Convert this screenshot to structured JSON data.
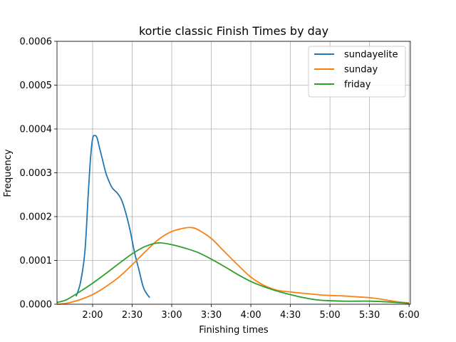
{
  "chart_data": {
    "type": "line",
    "title": "kortie classic Finish Times by day",
    "xlabel": "Finishing times",
    "ylabel": "Frequency",
    "xlim": [
      5580,
      21660
    ],
    "ylim": [
      0,
      0.0006
    ],
    "grid": true,
    "legend_position": "top-right",
    "x_units": "seconds",
    "x_ticks": [
      {
        "value": 7200,
        "label": "2:00"
      },
      {
        "value": 9000,
        "label": "2:30"
      },
      {
        "value": 10800,
        "label": "3:00"
      },
      {
        "value": 12600,
        "label": "3:30"
      },
      {
        "value": 14400,
        "label": "4:00"
      },
      {
        "value": 16200,
        "label": "4:30"
      },
      {
        "value": 18000,
        "label": "5:00"
      },
      {
        "value": 19800,
        "label": "5:30"
      },
      {
        "value": 21600,
        "label": "6:00"
      }
    ],
    "y_ticks": [
      {
        "value": 0,
        "label": "0.0000"
      },
      {
        "value": 0.0001,
        "label": "0.0001"
      },
      {
        "value": 0.0002,
        "label": "0.0002"
      },
      {
        "value": 0.0003,
        "label": "0.0003"
      },
      {
        "value": 0.0004,
        "label": "0.0004"
      },
      {
        "value": 0.0005,
        "label": "0.0005"
      },
      {
        "value": 0.0006,
        "label": "0.0006"
      }
    ],
    "series": [
      {
        "name": "sundayelite",
        "color": "#1f77b4",
        "points": [
          [
            6450,
            1.8e-05
          ],
          [
            6650,
            5e-05
          ],
          [
            6850,
            0.00012
          ],
          [
            7000,
            0.00025
          ],
          [
            7100,
            0.00033
          ],
          [
            7200,
            0.000378
          ],
          [
            7300,
            0.000385
          ],
          [
            7400,
            0.00038
          ],
          [
            7500,
            0.00036
          ],
          [
            7650,
            0.00033
          ],
          [
            7800,
            0.0003
          ],
          [
            7950,
            0.00028
          ],
          [
            8100,
            0.000265
          ],
          [
            8300,
            0.000255
          ],
          [
            8500,
            0.00024
          ],
          [
            8700,
            0.00021
          ],
          [
            8900,
            0.00017
          ],
          [
            9100,
            0.00012
          ],
          [
            9300,
            8e-05
          ],
          [
            9500,
            4e-05
          ],
          [
            9650,
            2.5e-05
          ],
          [
            9800,
            1.5e-05
          ]
        ]
      },
      {
        "name": "sunday",
        "color": "#ff7f0e",
        "points": [
          [
            5580,
            0.0
          ],
          [
            6000,
            2e-06
          ],
          [
            6600,
            1e-05
          ],
          [
            7200,
            2.2e-05
          ],
          [
            7800,
            4e-05
          ],
          [
            8400,
            6.2e-05
          ],
          [
            9000,
            9e-05
          ],
          [
            9600,
            0.00012
          ],
          [
            10200,
            0.000148
          ],
          [
            10800,
            0.000166
          ],
          [
            11400,
            0.000174
          ],
          [
            11700,
            0.000175
          ],
          [
            12000,
            0.00017
          ],
          [
            12600,
            0.00015
          ],
          [
            13200,
            0.00012
          ],
          [
            13800,
            9e-05
          ],
          [
            14400,
            6.2e-05
          ],
          [
            15000,
            4.3e-05
          ],
          [
            15600,
            3.2e-05
          ],
          [
            16200,
            2.8e-05
          ],
          [
            16800,
            2.5e-05
          ],
          [
            17400,
            2.2e-05
          ],
          [
            18000,
            2e-05
          ],
          [
            18600,
            1.9e-05
          ],
          [
            19200,
            1.7e-05
          ],
          [
            19800,
            1.5e-05
          ],
          [
            20400,
            1.1e-05
          ],
          [
            21000,
            6e-06
          ],
          [
            21600,
            3e-06
          ]
        ]
      },
      {
        "name": "friday",
        "color": "#2ca02c",
        "points": [
          [
            5580,
            4e-06
          ],
          [
            6000,
            1e-05
          ],
          [
            6600,
            2.8e-05
          ],
          [
            7200,
            4.8e-05
          ],
          [
            7800,
            7e-05
          ],
          [
            8400,
            9.3e-05
          ],
          [
            9000,
            0.000115
          ],
          [
            9600,
            0.000132
          ],
          [
            10200,
            0.00014
          ],
          [
            10800,
            0.000136
          ],
          [
            11400,
            0.000128
          ],
          [
            12000,
            0.000118
          ],
          [
            12600,
            0.000103
          ],
          [
            13200,
            8.6e-05
          ],
          [
            13800,
            6.8e-05
          ],
          [
            14400,
            5.2e-05
          ],
          [
            15000,
            4e-05
          ],
          [
            15600,
            3e-05
          ],
          [
            16200,
            2.2e-05
          ],
          [
            16800,
            1.5e-05
          ],
          [
            17400,
            1e-05
          ],
          [
            18000,
            8e-06
          ],
          [
            18600,
            7e-06
          ],
          [
            19200,
            7e-06
          ],
          [
            19800,
            7e-06
          ],
          [
            20400,
            6e-06
          ],
          [
            21000,
            4e-06
          ],
          [
            21600,
            2e-06
          ]
        ]
      }
    ]
  }
}
